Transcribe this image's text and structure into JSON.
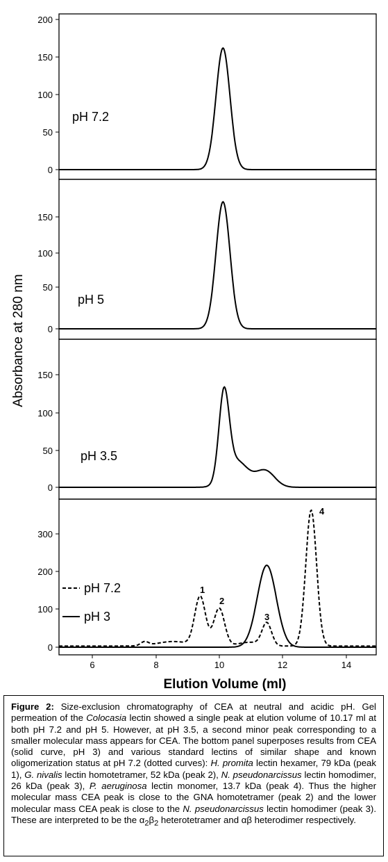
{
  "chart_data": [
    {
      "type": "line",
      "title": "",
      "panel_label": "pH 7.2",
      "xlim": [
        5,
        15
      ],
      "ylim": [
        -15,
        200
      ],
      "yticks": [
        0,
        50,
        100,
        150,
        200
      ],
      "series": [
        {
          "name": "",
          "style": "solid",
          "peaks": [
            {
              "x": 10.17,
              "height": 162,
              "width": 0.22
            }
          ],
          "baseline": 0
        }
      ]
    },
    {
      "type": "line",
      "title": "",
      "panel_label": "pH 5",
      "xlim": [
        5,
        15
      ],
      "ylim": [
        -15,
        175
      ],
      "yticks": [
        0,
        50,
        100,
        150
      ],
      "series": [
        {
          "name": "",
          "style": "solid",
          "peaks": [
            {
              "x": 10.17,
              "height": 170,
              "width": 0.22
            }
          ],
          "baseline": 0
        }
      ]
    },
    {
      "type": "line",
      "title": "",
      "panel_label": "pH 3.5",
      "xlim": [
        5,
        15
      ],
      "ylim": [
        -15,
        175
      ],
      "yticks": [
        0,
        50,
        100,
        150
      ],
      "series": [
        {
          "name": "",
          "style": "solid",
          "peaks": [
            {
              "x": 10.2,
              "height": 115,
              "width": 0.16
            },
            {
              "x": 10.6,
              "height": 35,
              "width": 0.35
            },
            {
              "x": 11.5,
              "height": 22,
              "width": 0.3
            }
          ],
          "baseline": 0
        }
      ]
    },
    {
      "type": "line",
      "title": "",
      "xlim": [
        5,
        15
      ],
      "ylim": [
        -20,
        380
      ],
      "yticks": [
        0,
        100,
        200,
        300
      ],
      "xticks": [
        6,
        8,
        10,
        12,
        14
      ],
      "xlabel": "Elution Volume (ml)",
      "legend": [
        "pH 7.2",
        "pH 3"
      ],
      "series": [
        {
          "name": "pH 7.2",
          "style": "dashed",
          "peaks": [
            {
              "x": 7.7,
              "height": 10,
              "width": 0.12
            },
            {
              "x": 8.6,
              "height": 12,
              "width": 0.5
            },
            {
              "x": 9.45,
              "height": 130,
              "width": 0.17
            },
            {
              "x": 10.05,
              "height": 100,
              "width": 0.17
            },
            {
              "x": 11.0,
              "height": 10,
              "width": 0.35
            },
            {
              "x": 11.55,
              "height": 60,
              "width": 0.15
            },
            {
              "x": 12.95,
              "height": 360,
              "width": 0.17
            }
          ],
          "baseline": 3
        },
        {
          "name": "pH 3",
          "style": "solid",
          "peaks": [
            {
              "x": 11.55,
              "height": 217,
              "width": 0.3
            }
          ],
          "baseline": 0
        }
      ],
      "annotations": [
        "1",
        "2",
        "3",
        "4"
      ]
    }
  ],
  "figure": {
    "ylabel": "Absorbance at 280 nm",
    "xlabel": "Elution Volume (ml)",
    "panel_labels": [
      "pH 7.2",
      "pH 5",
      "pH 3.5"
    ],
    "legend_dashed": "pH 7.2",
    "legend_solid": "pH 3",
    "peak_labels": [
      "1",
      "2",
      "3",
      "4"
    ],
    "x_ticks": [
      "6",
      "8",
      "10",
      "12",
      "14"
    ],
    "y_ticks_p1": [
      "0",
      "50",
      "100",
      "150",
      "200"
    ],
    "y_ticks_p2": [
      "0",
      "50",
      "100",
      "150"
    ],
    "y_ticks_p3": [
      "0",
      "50",
      "100",
      "150"
    ],
    "y_ticks_p4": [
      "0",
      "100",
      "200",
      "300"
    ]
  },
  "caption": {
    "label": "Figure 2:",
    "s1": " Size-exclusion chromatography of CEA at neutral and acidic pH. Gel permeation of the ",
    "i1": "Colocasia",
    "s2": " lectin showed a single peak at elution volume of 10.17 ml at both pH 7.2 and pH 5. However, at pH 3.5, a second minor peak corresponding to a smaller molecular mass appears for CEA. The bottom panel superposes results from CEA (solid curve, pH 3) and various standard lectins of similar shape and known oligomerization status at pH 7.2 (dotted curves): ",
    "i2": "H. promita",
    "s3": " lectin hexamer, 79 kDa (peak 1), ",
    "i3": "G. nivalis",
    "s4": " lectin homotetramer, 52 kDa (peak 2), ",
    "i4": "N. pseudonarcissus",
    "s5": " lectin homodimer, 26 kDa (peak 3), ",
    "i5": "P. aeruginosa",
    "s6": " lectin monomer, 13.7 kDa (peak 4). Thus the higher molecular mass CEA peak is close to the GNA homotetramer (peak 2) and the lower molecular mass CEA peak is close to the ",
    "i6": "N. pseudonarcissus",
    "s7": " lectin homodimer (peak 3). These are interpreted to be the α",
    "sub1": "2",
    "s8": "β",
    "sub2": "2",
    "s9": " heterotetramer and αβ heterodimer respectively."
  }
}
